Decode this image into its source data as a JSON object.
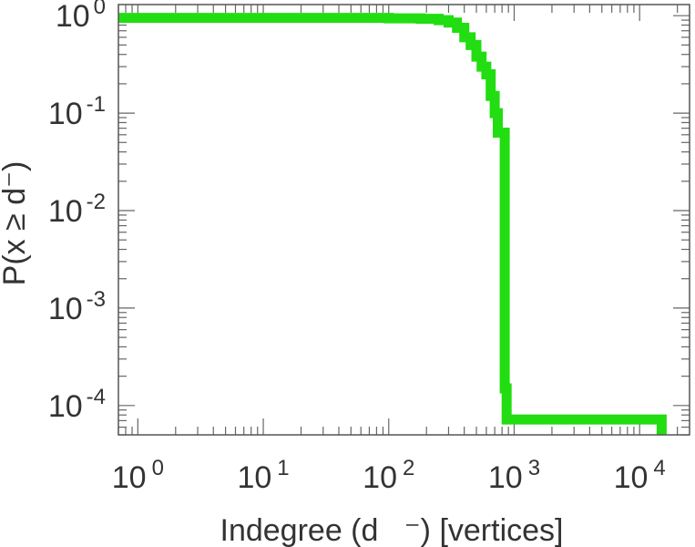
{
  "chart_data": {
    "type": "line",
    "title": "",
    "xlabel": "Indegree (d   ⁻) [vertices]",
    "ylabel": "P(x ≥ d⁻)",
    "xscale": "log",
    "yscale": "log",
    "xlim": [
      0.7,
      25000
    ],
    "ylim": [
      5e-05,
      1.3
    ],
    "grid": false,
    "legend": "none",
    "x_ticks": [
      {
        "value": 1,
        "base": "10",
        "exp": "0"
      },
      {
        "value": 10,
        "base": "10",
        "exp": "1"
      },
      {
        "value": 100,
        "base": "10",
        "exp": "2"
      },
      {
        "value": 1000,
        "base": "10",
        "exp": "3"
      },
      {
        "value": 10000,
        "base": "10",
        "exp": "4"
      }
    ],
    "y_ticks": [
      {
        "value": 1,
        "base": "10",
        "exp": "0"
      },
      {
        "value": 0.1,
        "base": "10",
        "exp": "-1"
      },
      {
        "value": 0.01,
        "base": "10",
        "exp": "-2"
      },
      {
        "value": 0.001,
        "base": "10",
        "exp": "-3"
      },
      {
        "value": 0.0001,
        "base": "10",
        "exp": "-4"
      }
    ],
    "series": [
      {
        "color": "#22dd11",
        "x": [
          0.7,
          1,
          10,
          100,
          180,
          250,
          300,
          350,
          400,
          450,
          500,
          550,
          600,
          650,
          700,
          740,
          760,
          800,
          840,
          860,
          870,
          880,
          900,
          1000,
          10000,
          15000,
          15000
        ],
        "y": [
          0.95,
          0.95,
          0.95,
          0.94,
          0.93,
          0.9,
          0.85,
          0.75,
          0.6,
          0.5,
          0.38,
          0.3,
          0.25,
          0.15,
          0.1,
          0.063,
          0.063,
          0.063,
          0.00015,
          0.00015,
          7.2e-05,
          7.2e-05,
          7.2e-05,
          7.2e-05,
          7.2e-05,
          7.2e-05,
          5e-05
        ]
      }
    ]
  }
}
